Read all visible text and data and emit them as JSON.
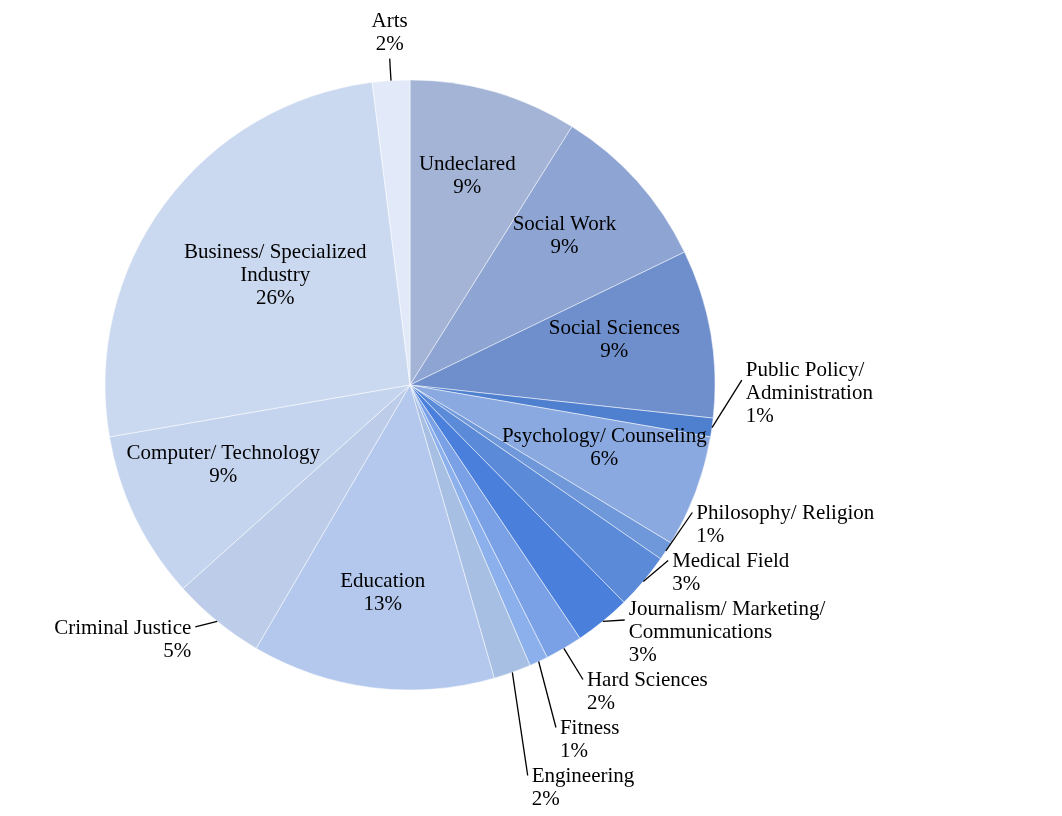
{
  "chart_data": {
    "type": "pie",
    "categories": [
      "Undeclared",
      "Social Work",
      "Social Sciences",
      "Public Policy/ Administration",
      "Psychology/ Counseling",
      "Philosophy/ Religion",
      "Medical Field",
      "Journalism/ Marketing/ Communications",
      "Hard Sciences",
      "Fitness",
      "Engineering",
      "Education",
      "Criminal Justice",
      "Computer/ Technology",
      "Business/ Specialized Industry",
      "Arts"
    ],
    "values": [
      9,
      9,
      9,
      1,
      6,
      1,
      3,
      3,
      2,
      1,
      2,
      13,
      5,
      9,
      26,
      2
    ],
    "value_labels": [
      "9%",
      "9%",
      "9%",
      "1%",
      "6%",
      "1%",
      "3%",
      "3%",
      "2%",
      "1%",
      "2%",
      "13%",
      "5%",
      "9%",
      "26%",
      "2%"
    ],
    "colors": [
      "#a3b4d6",
      "#8ea4d3",
      "#6f8fcc",
      "#4f7fcf",
      "#8aa9e0",
      "#6f98db",
      "#5b8ad8",
      "#4a80dc",
      "#7aa0e6",
      "#8cb0ec",
      "#a8bfe4",
      "#b3c8ec",
      "#bccce9",
      "#c5d4ee",
      "#cbd9f0",
      "#e2eafa"
    ]
  }
}
